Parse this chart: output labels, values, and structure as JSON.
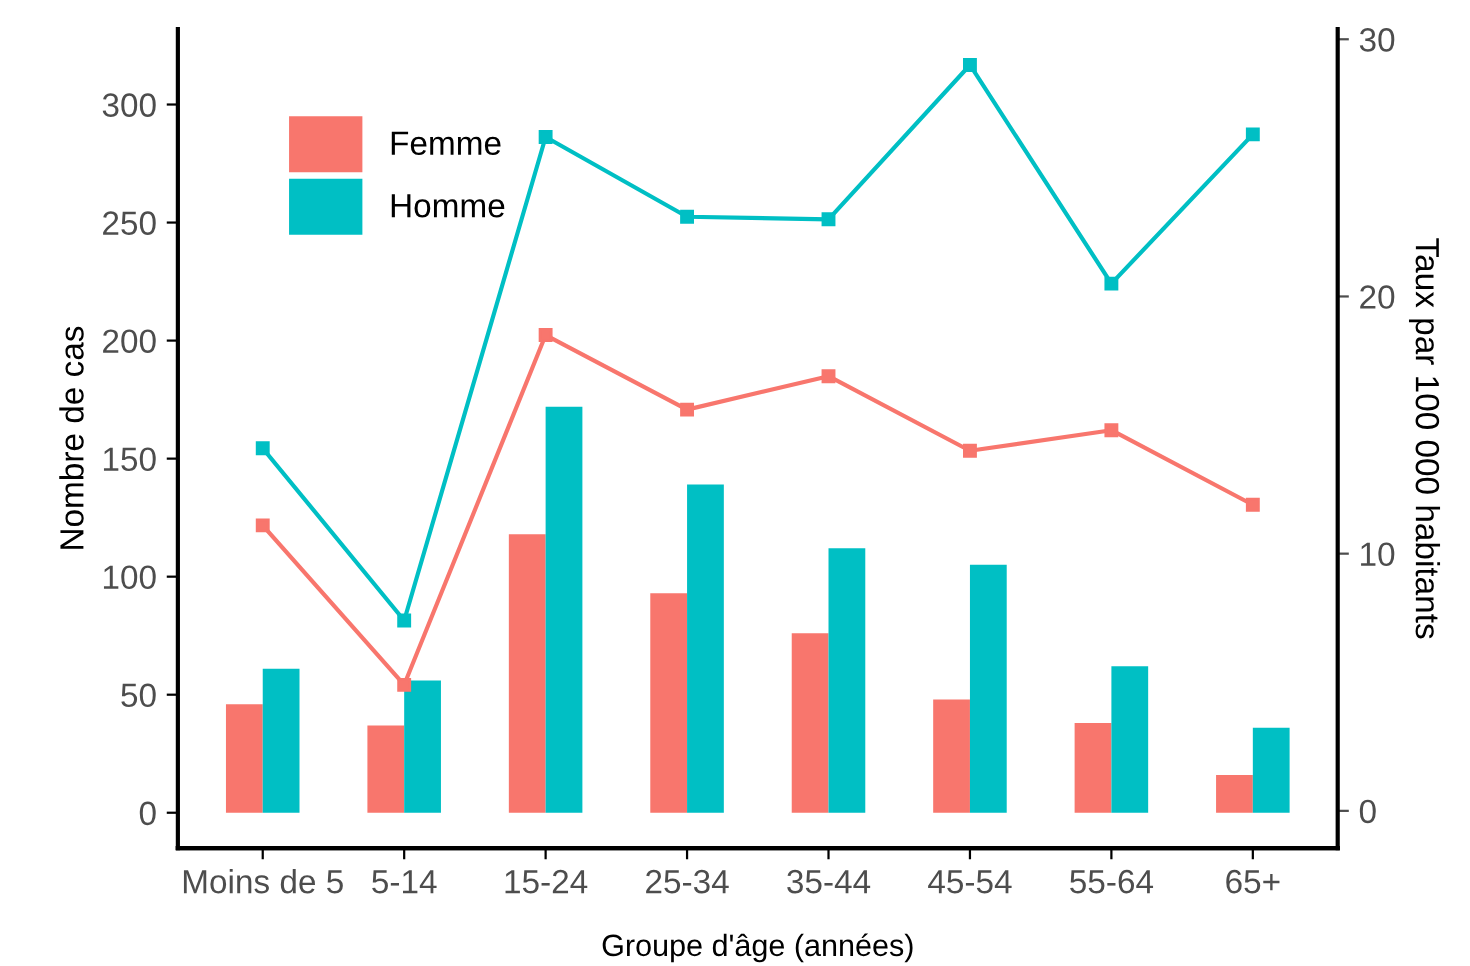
{
  "chart_data": {
    "type": "bar",
    "xlabel": "Groupe d'âge (années)",
    "ylabel": "Nombre de cas",
    "y2label": "Taux par 100 000 habitants",
    "categories": [
      "Moins de 5",
      "5-14",
      "15-24",
      "25-34",
      "35-44",
      "45-54",
      "55-64",
      "65+"
    ],
    "series": [
      {
        "name": "Femme",
        "color": "#f8766d",
        "values": [
          46,
          37,
          118,
          93,
          76,
          48,
          38,
          16
        ]
      },
      {
        "name": "Homme",
        "color": "#00bfc4",
        "values": [
          61,
          56,
          172,
          139,
          112,
          105,
          62,
          36
        ]
      },
      {
        "type": "line",
        "axis": "y2",
        "color": "#f8766d",
        "values": [
          11.1,
          4.9,
          18.5,
          15.6,
          16.9,
          14.0,
          14.8,
          11.9
        ]
      },
      {
        "type": "line",
        "axis": "y2",
        "color": "#00bfc4",
        "values": [
          14.1,
          7.4,
          26.2,
          23.1,
          23.0,
          29.0,
          20.5,
          26.3
        ]
      }
    ],
    "ylim": [
      -15,
      332
    ],
    "yticks": [
      0,
      50,
      100,
      150,
      200,
      250,
      300
    ],
    "y2lim": [
      -1.45,
      30.4
    ],
    "y2ticks": [
      0,
      10,
      20,
      30
    ],
    "marker": "square",
    "line_style": "solid",
    "grid": false,
    "legend": "top left"
  }
}
